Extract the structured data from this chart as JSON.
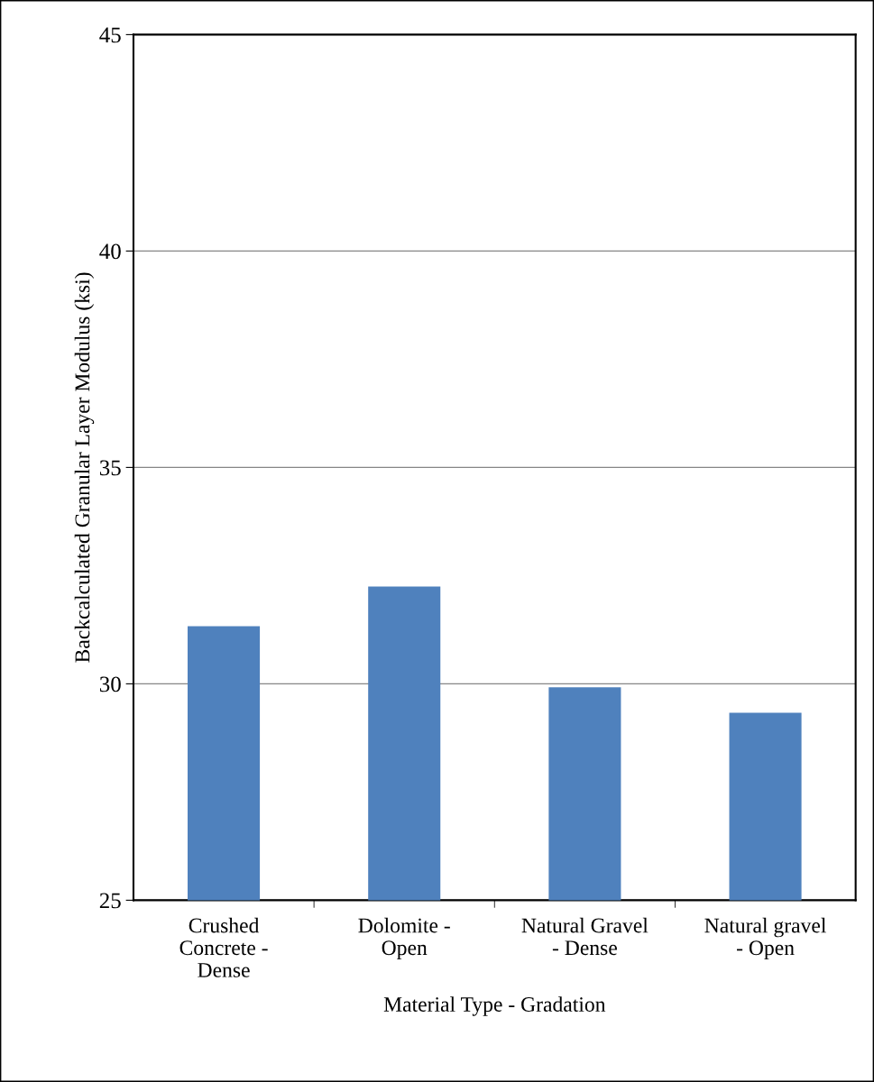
{
  "chart_data": {
    "type": "bar",
    "xlabel": "Material Type - Gradation",
    "ylabel": "Backcalculated Granular Layer Modulus (ksi)",
    "categories": [
      "Crushed Concrete - Dense",
      "Dolomite - Open",
      "Natural Gravel - Dense",
      "Natural gravel - Open"
    ],
    "values": [
      31.33,
      32.25,
      29.92,
      29.33
    ],
    "color": "#4f81bd",
    "ylim": [
      25,
      45
    ],
    "yticks": [
      25,
      30,
      35,
      40,
      45
    ],
    "grid": "y",
    "legend": false
  }
}
